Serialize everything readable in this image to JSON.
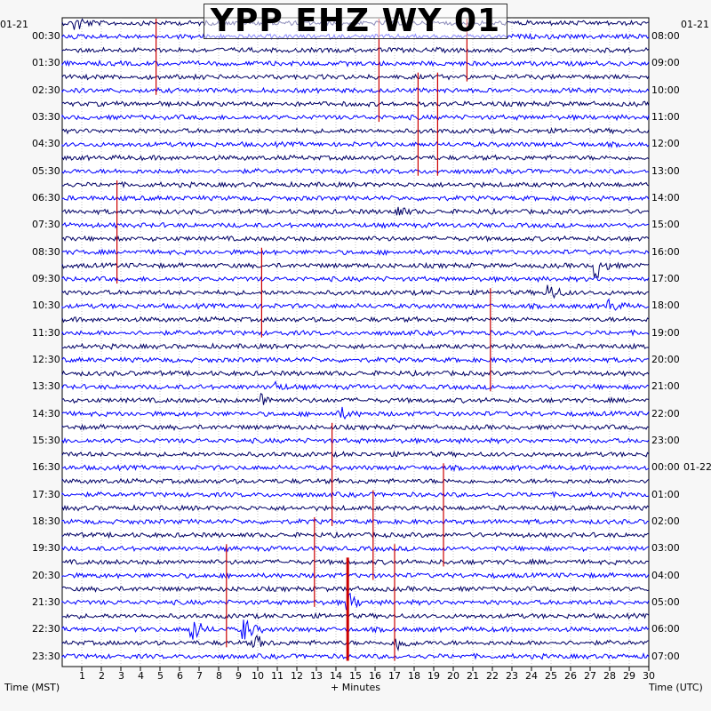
{
  "chart_data": {
    "type": "line",
    "title": "YPP EHZ WY 01",
    "xlabel": "+ Minutes",
    "left_axis_label": "Time (MST)",
    "right_axis_label": "Time (UTC)",
    "left_date_label": "01-21",
    "right_date_label": "01-22",
    "right_start_date": "01-21",
    "x_range": [
      0,
      30
    ],
    "x_ticks": [
      "1",
      "2",
      "3",
      "4",
      "5",
      "6",
      "7",
      "8",
      "9",
      "10",
      "11",
      "12",
      "13",
      "14",
      "15",
      "16",
      "17",
      "18",
      "19",
      "20",
      "21",
      "22",
      "23",
      "24",
      "25",
      "26",
      "27",
      "28",
      "29",
      "30"
    ],
    "left_times": [
      "00:30",
      "01:30",
      "02:30",
      "03:30",
      "04:30",
      "05:30",
      "06:30",
      "07:30",
      "08:30",
      "09:30",
      "10:30",
      "11:30",
      "12:30",
      "13:30",
      "14:30",
      "15:30",
      "16:30",
      "17:30",
      "18:30",
      "19:30",
      "20:30",
      "21:30",
      "22:30",
      "23:30"
    ],
    "right_times": [
      "08:00",
      "09:00",
      "10:00",
      "11:00",
      "12:00",
      "13:00",
      "14:00",
      "15:00",
      "16:00",
      "17:00",
      "18:00",
      "19:00",
      "20:00",
      "21:00",
      "22:00",
      "23:00",
      "00:00",
      "01:00",
      "02:00",
      "03:00",
      "04:00",
      "05:00",
      "06:00",
      "07:00"
    ],
    "trace_rows": 48,
    "trace_colors": [
      "#000066",
      "#0000ff"
    ],
    "minute_marker_color": "#cc0000",
    "events": [
      {
        "row": 0,
        "minute": 0.8,
        "amplitude": 8
      },
      {
        "row": 14,
        "minute": 17.1,
        "amplitude": 7
      },
      {
        "row": 18,
        "minute": 27.4,
        "amplitude": 12
      },
      {
        "row": 20,
        "minute": 25.0,
        "amplitude": 9
      },
      {
        "row": 21,
        "minute": 28.0,
        "amplitude": 7
      },
      {
        "row": 27,
        "minute": 10.9,
        "amplitude": 5
      },
      {
        "row": 28,
        "minute": 10.3,
        "amplitude": 6
      },
      {
        "row": 29,
        "minute": 14.3,
        "amplitude": 6
      },
      {
        "row": 43,
        "minute": 14.7,
        "amplitude": 9
      },
      {
        "row": 45,
        "minute": 6.7,
        "amplitude": 14
      },
      {
        "row": 45,
        "minute": 9.4,
        "amplitude": 12
      },
      {
        "row": 46,
        "minute": 17.2,
        "amplitude": 10
      },
      {
        "row": 46,
        "minute": 9.9,
        "amplitude": 8
      }
    ],
    "red_markers": [
      {
        "minute": 4.8,
        "row_start": 0,
        "row_end": 5
      },
      {
        "minute": 16.2,
        "row_start": 0,
        "row_end": 7
      },
      {
        "minute": 20.7,
        "row_start": 0,
        "row_end": 4
      },
      {
        "minute": 18.2,
        "row_start": 4,
        "row_end": 11
      },
      {
        "minute": 19.2,
        "row_start": 4,
        "row_end": 11
      },
      {
        "minute": 2.8,
        "row_start": 12,
        "row_end": 19
      },
      {
        "minute": 10.2,
        "row_start": 17,
        "row_end": 23
      },
      {
        "minute": 21.9,
        "row_start": 20,
        "row_end": 27
      },
      {
        "minute": 13.8,
        "row_start": 30,
        "row_end": 37
      },
      {
        "minute": 19.5,
        "row_start": 33,
        "row_end": 40
      },
      {
        "minute": 15.9,
        "row_start": 35,
        "row_end": 41
      },
      {
        "minute": 12.9,
        "row_start": 37,
        "row_end": 43
      },
      {
        "minute": 8.4,
        "row_start": 39,
        "row_end": 46
      },
      {
        "minute": 17.0,
        "row_start": 39,
        "row_end": 47
      },
      {
        "minute": 14.6,
        "row_start": 40,
        "row_end": 47,
        "bold": true
      }
    ]
  }
}
